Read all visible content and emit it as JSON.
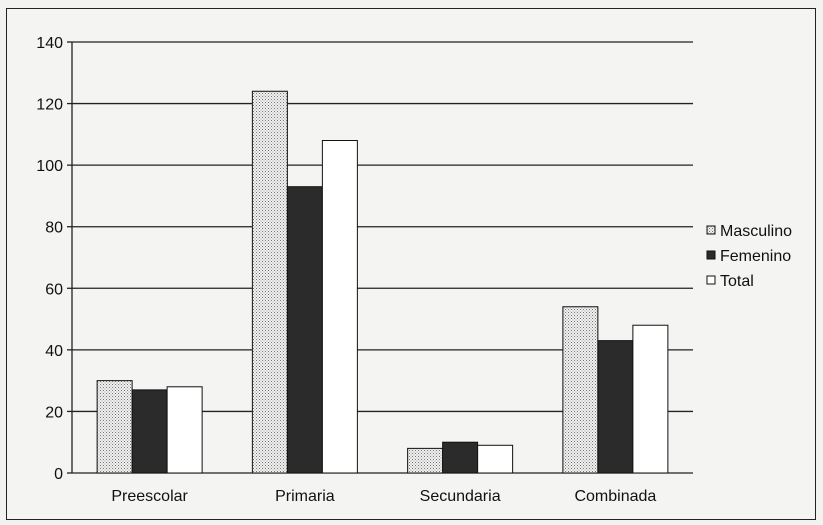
{
  "chart_data": {
    "type": "bar",
    "categories": [
      "Preescolar",
      "Primaria",
      "Secundaria",
      "Combinada"
    ],
    "series": [
      {
        "name": "Masculino",
        "values": [
          30,
          124,
          8,
          54
        ],
        "pattern": "dotted",
        "color": "#e6e6e6"
      },
      {
        "name": "Femenino",
        "values": [
          27,
          93,
          10,
          43
        ],
        "pattern": "solid",
        "color": "#2b2b2b"
      },
      {
        "name": "Total",
        "values": [
          28,
          108,
          9,
          48
        ],
        "pattern": "solid",
        "color": "#ffffff"
      }
    ],
    "yticks": [
      0,
      20,
      40,
      60,
      80,
      100,
      120,
      140
    ],
    "ylim": [
      0,
      140
    ],
    "grid": true,
    "legend_position": "right",
    "title": "",
    "xlabel": "",
    "ylabel": ""
  }
}
